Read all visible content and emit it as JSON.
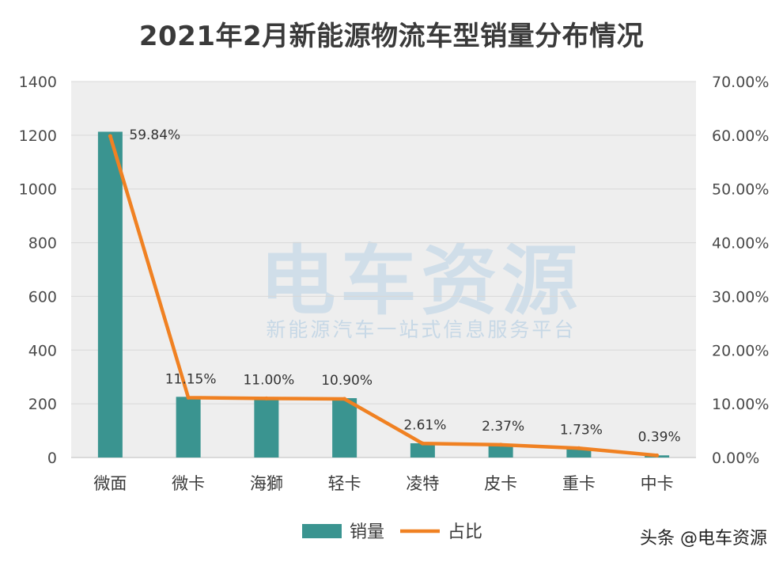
{
  "chart_data": {
    "type": "bar+line",
    "title": "2021年2月新能源物流车型销量分布情况",
    "categories": [
      "微面",
      "微卡",
      "海獅",
      "轻卡",
      "凌特",
      "皮卡",
      "重卡",
      "中卡"
    ],
    "series": [
      {
        "name": "销量",
        "type": "bar",
        "axis": "left",
        "color": "#3a9490",
        "values": [
          1213,
          226,
          223,
          221,
          53,
          48,
          35,
          8
        ]
      },
      {
        "name": "占比",
        "type": "line",
        "axis": "right",
        "color": "#f08122",
        "values": [
          59.84,
          11.15,
          11.0,
          10.9,
          2.61,
          2.37,
          1.73,
          0.39
        ],
        "labels": [
          "59.84%",
          "11.15%",
          "11.00%",
          "10.90%",
          "2.61%",
          "2.37%",
          "1.73%",
          "0.39%"
        ]
      }
    ],
    "y_left": {
      "min": 0,
      "max": 1400,
      "step": 200,
      "ticks": [
        "0",
        "200",
        "400",
        "600",
        "800",
        "1000",
        "1200",
        "1400"
      ]
    },
    "y_right": {
      "min": 0,
      "max": 70,
      "step": 10,
      "ticks": [
        "0.00%",
        "10.00%",
        "20.00%",
        "30.00%",
        "40.00%",
        "50.00%",
        "60.00%",
        "70.00%"
      ]
    },
    "grid": true,
    "legend_position": "bottom"
  },
  "watermark": {
    "main": "电车资源",
    "sub": "新能源汽车一站式信息服务平台"
  },
  "credit": "头条 @电车资源"
}
